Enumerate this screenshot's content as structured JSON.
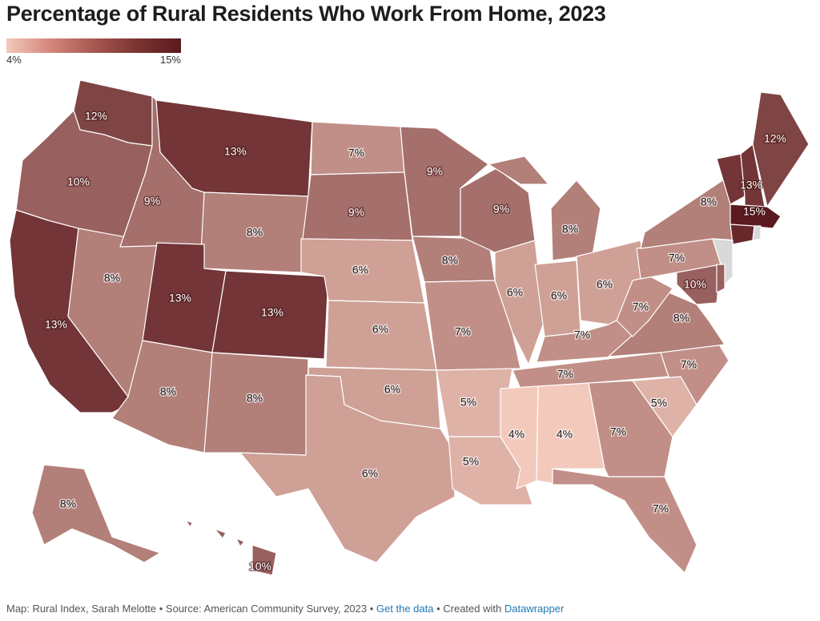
{
  "title": "Percentage of Rural Residents Who Work From Home, 2023",
  "legend": {
    "min_label": "4%",
    "max_label": "15%",
    "min_value": 4,
    "max_value": 15,
    "color_low": "#f3c9bb",
    "color_high": "#5b1a1f"
  },
  "no_data_color": "#d9d9d9",
  "footer": {
    "credit": "Map: Rural Index, Sarah Melotte • Source: American Community Survey, 2023 • ",
    "data_link": "Get the data",
    "separator": " • Created with ",
    "tool_link": "Datawrapper"
  },
  "states": [
    {
      "id": "WA",
      "label": "12%",
      "value": 12
    },
    {
      "id": "OR",
      "label": "10%",
      "value": 10
    },
    {
      "id": "CA",
      "label": "13%",
      "value": 13
    },
    {
      "id": "NV",
      "label": "8%",
      "value": 8
    },
    {
      "id": "ID",
      "label": "9%",
      "value": 9
    },
    {
      "id": "MT",
      "label": "13%",
      "value": 13
    },
    {
      "id": "WY",
      "label": "8%",
      "value": 8
    },
    {
      "id": "UT",
      "label": "13%",
      "value": 13
    },
    {
      "id": "CO",
      "label": "13%",
      "value": 13
    },
    {
      "id": "AZ",
      "label": "8%",
      "value": 8
    },
    {
      "id": "NM",
      "label": "8%",
      "value": 8
    },
    {
      "id": "ND",
      "label": "7%",
      "value": 7
    },
    {
      "id": "SD",
      "label": "9%",
      "value": 9
    },
    {
      "id": "NE",
      "label": "6%",
      "value": 6
    },
    {
      "id": "KS",
      "label": "6%",
      "value": 6
    },
    {
      "id": "OK",
      "label": "6%",
      "value": 6
    },
    {
      "id": "TX",
      "label": "6%",
      "value": 6
    },
    {
      "id": "MN",
      "label": "9%",
      "value": 9
    },
    {
      "id": "IA",
      "label": "8%",
      "value": 8
    },
    {
      "id": "MO",
      "label": "7%",
      "value": 7
    },
    {
      "id": "AR",
      "label": "5%",
      "value": 5
    },
    {
      "id": "LA",
      "label": "5%",
      "value": 5
    },
    {
      "id": "WI",
      "label": "9%",
      "value": 9
    },
    {
      "id": "IL",
      "label": "6%",
      "value": 6
    },
    {
      "id": "MI",
      "label": "8%",
      "value": 8
    },
    {
      "id": "IN",
      "label": "6%",
      "value": 6
    },
    {
      "id": "OH",
      "label": "6%",
      "value": 6
    },
    {
      "id": "KY",
      "label": "7%",
      "value": 7
    },
    {
      "id": "TN",
      "label": "7%",
      "value": 7
    },
    {
      "id": "MS",
      "label": "4%",
      "value": 4
    },
    {
      "id": "AL",
      "label": "4%",
      "value": 4
    },
    {
      "id": "GA",
      "label": "7%",
      "value": 7
    },
    {
      "id": "FL",
      "label": "7%",
      "value": 7
    },
    {
      "id": "SC",
      "label": "5%",
      "value": 5
    },
    {
      "id": "NC",
      "label": "7%",
      "value": 7
    },
    {
      "id": "VA",
      "label": "8%",
      "value": 8
    },
    {
      "id": "WV",
      "label": "7%",
      "value": 7
    },
    {
      "id": "MD",
      "label": "10%",
      "value": 10
    },
    {
      "id": "PA",
      "label": "7%",
      "value": 7
    },
    {
      "id": "NY",
      "label": "8%",
      "value": 8
    },
    {
      "id": "VT",
      "label": "13%",
      "value": 13
    },
    {
      "id": "NH",
      "label": "13%",
      "value": 13
    },
    {
      "id": "ME",
      "label": "12%",
      "value": 12
    },
    {
      "id": "MA",
      "label": "15%",
      "value": 15
    },
    {
      "id": "CT",
      "label": "",
      "value": 14
    },
    {
      "id": "RI",
      "label": "",
      "value": null
    },
    {
      "id": "NJ",
      "label": "",
      "value": null
    },
    {
      "id": "DE",
      "label": "",
      "value": 10
    },
    {
      "id": "AK",
      "label": "8%",
      "value": 8
    },
    {
      "id": "HI",
      "label": "10%",
      "value": 10
    }
  ]
}
